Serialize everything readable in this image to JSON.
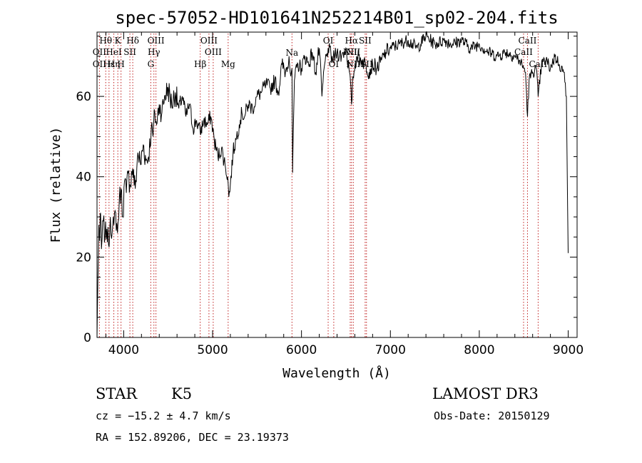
{
  "chart_data": {
    "type": "line",
    "title": "spec-57052-HD101641N252214B01_sp02-204.fits",
    "xlabel": "Wavelength (Å)",
    "ylabel": "Flux (relative)",
    "xlim": [
      3700,
      9100
    ],
    "ylim": [
      0,
      76
    ],
    "xticks": [
      4000,
      5000,
      6000,
      7000,
      8000,
      9000
    ],
    "yticks": [
      0,
      20,
      40,
      60
    ],
    "xtick_labels": [
      "4000",
      "5000",
      "6000",
      "7000",
      "8000",
      "9000"
    ],
    "ytick_labels": [
      "0",
      "20",
      "40",
      "60"
    ],
    "series": [
      {
        "name": "flux",
        "x": [
          3700,
          3710,
          3720,
          3730,
          3740,
          3750,
          3770,
          3790,
          3810,
          3830,
          3850,
          3870,
          3890,
          3910,
          3930,
          3950,
          3970,
          3990,
          4010,
          4030,
          4050,
          4070,
          4100,
          4130,
          4160,
          4190,
          4220,
          4250,
          4280,
          4310,
          4330,
          4350,
          4370,
          4400,
          4430,
          4460,
          4500,
          4540,
          4580,
          4620,
          4660,
          4700,
          4740,
          4780,
          4820,
          4861,
          4900,
          4940,
          4980,
          5020,
          5060,
          5100,
          5140,
          5170,
          5183,
          5200,
          5230,
          5270,
          5300,
          5330,
          5360,
          5400,
          5450,
          5500,
          5550,
          5600,
          5650,
          5700,
          5740,
          5780,
          5820,
          5860,
          5880,
          5893,
          5900,
          5920,
          5960,
          6000,
          6040,
          6080,
          6120,
          6160,
          6200,
          6230,
          6260,
          6280,
          6300,
          6350,
          6400,
          6450,
          6500,
          6540,
          6563,
          6580,
          6620,
          6680,
          6720,
          6760,
          6800,
          6850,
          6900,
          6950,
          7000,
          7100,
          7200,
          7300,
          7400,
          7500,
          7600,
          7700,
          7800,
          7900,
          8000,
          8100,
          8200,
          8300,
          8400,
          8450,
          8500,
          8520,
          8542,
          8560,
          8600,
          8640,
          8662,
          8700,
          8750,
          8800,
          8850,
          8900,
          8950,
          8980,
          9000
        ],
        "y": [
          0,
          14,
          28,
          24,
          31,
          22,
          29,
          25,
          27,
          23,
          30,
          26,
          28,
          31,
          26,
          34,
          37,
          30,
          39,
          36,
          41,
          38,
          42,
          37,
          46,
          43,
          48,
          44,
          45,
          52,
          50,
          56,
          53,
          58,
          56,
          60,
          62,
          58,
          61,
          57,
          60,
          55,
          58,
          52,
          54,
          51,
          54,
          53,
          55,
          49,
          45,
          47,
          43,
          40,
          35,
          38,
          46,
          50,
          53,
          56,
          55,
          58,
          57,
          60,
          61,
          63,
          62,
          64,
          61,
          68,
          66,
          70,
          65,
          67,
          41,
          64,
          68,
          67,
          70,
          68,
          71,
          66,
          72,
          60,
          68,
          70,
          72,
          69,
          71,
          70,
          72,
          66,
          58,
          65,
          70,
          69,
          68,
          66,
          68,
          67,
          69,
          71,
          72,
          73,
          74,
          72,
          75,
          73,
          74,
          73,
          74,
          72,
          73,
          71,
          70,
          71,
          70,
          69,
          67,
          66,
          55,
          64,
          66,
          67,
          60,
          68,
          69,
          67,
          70,
          68,
          66,
          60,
          21
        ]
      }
    ],
    "line_marks": [
      {
        "label": "Hθ",
        "x": 3798,
        "row": 1,
        "dx": 0
      },
      {
        "label": "K",
        "x": 3934,
        "row": 1,
        "dx": 0
      },
      {
        "label": "Hδ",
        "x": 4102,
        "row": 1,
        "dx": 0
      },
      {
        "label": "OIII",
        "x": 4363,
        "row": 1,
        "dx": 0
      },
      {
        "label": "OIII",
        "x": 4959,
        "row": 1,
        "dx": 0
      },
      {
        "label": "OI",
        "x": 6300,
        "row": 1,
        "dx": 0
      },
      {
        "label": "Hα",
        "x": 6563,
        "row": 1,
        "dx": 0
      },
      {
        "label": "SII",
        "x": 6716,
        "row": 1,
        "dx": 0
      },
      {
        "label": "CaII",
        "x": 8542,
        "row": 1,
        "dx": 0
      },
      {
        "label": "OII",
        "x": 3727,
        "row": 2,
        "dx": 0
      },
      {
        "label": "HeI",
        "x": 3889,
        "row": 2,
        "dx": 0
      },
      {
        "label": "SII",
        "x": 4070,
        "row": 2,
        "dx": 0
      },
      {
        "label": "Hγ",
        "x": 4340,
        "row": 2,
        "dx": 0
      },
      {
        "label": "OIII",
        "x": 5007,
        "row": 2,
        "dx": 0
      },
      {
        "label": "NII",
        "x": 6548,
        "row": 2,
        "dx": 0
      },
      {
        "label": "NII",
        "x": 6583,
        "row": 2,
        "dx": 0
      },
      {
        "label": "CaII",
        "x": 8498,
        "row": 2,
        "dx": 0
      },
      {
        "label": "OII",
        "x": 3727,
        "row": 3,
        "dx": 0
      },
      {
        "label": "Hε",
        "x": 3835,
        "row": 3,
        "dx": 0
      },
      {
        "label": "Hη",
        "x": 3889,
        "row": 3,
        "dx": 0
      },
      {
        "label": "H",
        "x": 3970,
        "row": 3,
        "dx": 0
      },
      {
        "label": "G",
        "x": 4305,
        "row": 3,
        "dx": 0
      },
      {
        "label": "Hβ",
        "x": 4861,
        "row": 3,
        "dx": 0
      },
      {
        "label": "Mg",
        "x": 5175,
        "row": 3,
        "dx": 0
      },
      {
        "label": "Na",
        "x": 5893,
        "row": 0,
        "dx": 0
      },
      {
        "label": "OI",
        "x": 6363,
        "row": 3,
        "dx": 0
      },
      {
        "label": "NII",
        "x": 6583,
        "row": 3,
        "dx": 0
      },
      {
        "label": "SII",
        "x": 6731,
        "row": 3,
        "dx": 0
      },
      {
        "label": "CaII",
        "x": 8662,
        "row": 3,
        "dx": 0
      }
    ],
    "dotted_lines_x": [
      3727,
      3798,
      3835,
      3889,
      3934,
      3970,
      4070,
      4102,
      4305,
      4340,
      4363,
      4861,
      4959,
      5007,
      5175,
      5893,
      6300,
      6363,
      6548,
      6563,
      6583,
      6716,
      6731,
      8498,
      8542,
      8662
    ]
  },
  "info": {
    "object_type": "STAR",
    "subclass": "K5",
    "survey": "LAMOST DR3",
    "redshift": "cz = −15.2 ± 4.7 km/s",
    "obs_date": "Obs-Date: 20150129",
    "coordinates": "RA = 152.89206, DEC =  23.19373"
  }
}
